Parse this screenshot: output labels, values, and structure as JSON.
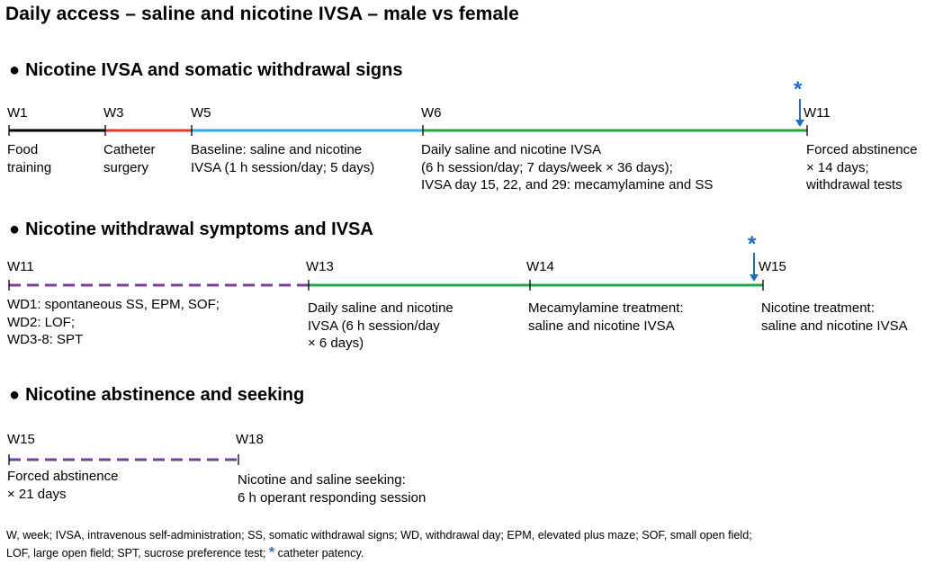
{
  "title": "Daily access – saline and nicotine IVSA – male vs female",
  "colors": {
    "food_training": "#000000",
    "catheter_surgery": "#e8392b",
    "baseline": "#2aaee8",
    "ivsa": "#22a64a",
    "abstinence": "#7b3fa0",
    "catheter_patency": "#1f6fc0"
  },
  "sections": [
    {
      "heading": "Nicotine IVSA and somatic withdrawal signs",
      "weeks": [
        "W1",
        "W3",
        "W5",
        "W6",
        "W11"
      ],
      "descriptions": [
        "Food\ntraining",
        "Catheter\nsurgery",
        "Baseline: saline and nicotine\nIVSA (1 h session/day; 5 days)",
        "Daily saline and nicotine IVSA\n(6 h session/day; 7 days/week × 36 days);\nIVSA day 15, 22, and 29: mecamylamine and SS",
        "Forced abstinence\n× 14 days;\nwithdrawal tests"
      ]
    },
    {
      "heading": "Nicotine withdrawal symptoms and IVSA",
      "weeks": [
        "W11",
        "W13",
        "W14",
        "W15"
      ],
      "descriptions": [
        "WD1: spontaneous SS, EPM, SOF;\nWD2: LOF;\nWD3-8: SPT",
        "Daily saline and nicotine\nIVSA (6 h session/day\n× 6 days)",
        "Mecamylamine treatment:\nsaline and nicotine IVSA",
        "Nicotine treatment:\nsaline and nicotine IVSA"
      ]
    },
    {
      "heading": "Nicotine abstinence and seeking",
      "weeks": [
        "W15",
        "W18"
      ],
      "descriptions": [
        "Forced abstinence\n× 21 days",
        "Nicotine and saline seeking:\n6 h operant responding session"
      ]
    }
  ],
  "patency_marker": "*",
  "legend": {
    "text": "W, week; IVSA, intravenous self-administration; SS, somatic withdrawal signs; WD, withdrawal day; EPM, elevated plus maze; SOF, small open field;\nLOF, large open field; SPT, sucrose preference test;",
    "star": "*",
    "star_label": "catheter patency."
  }
}
